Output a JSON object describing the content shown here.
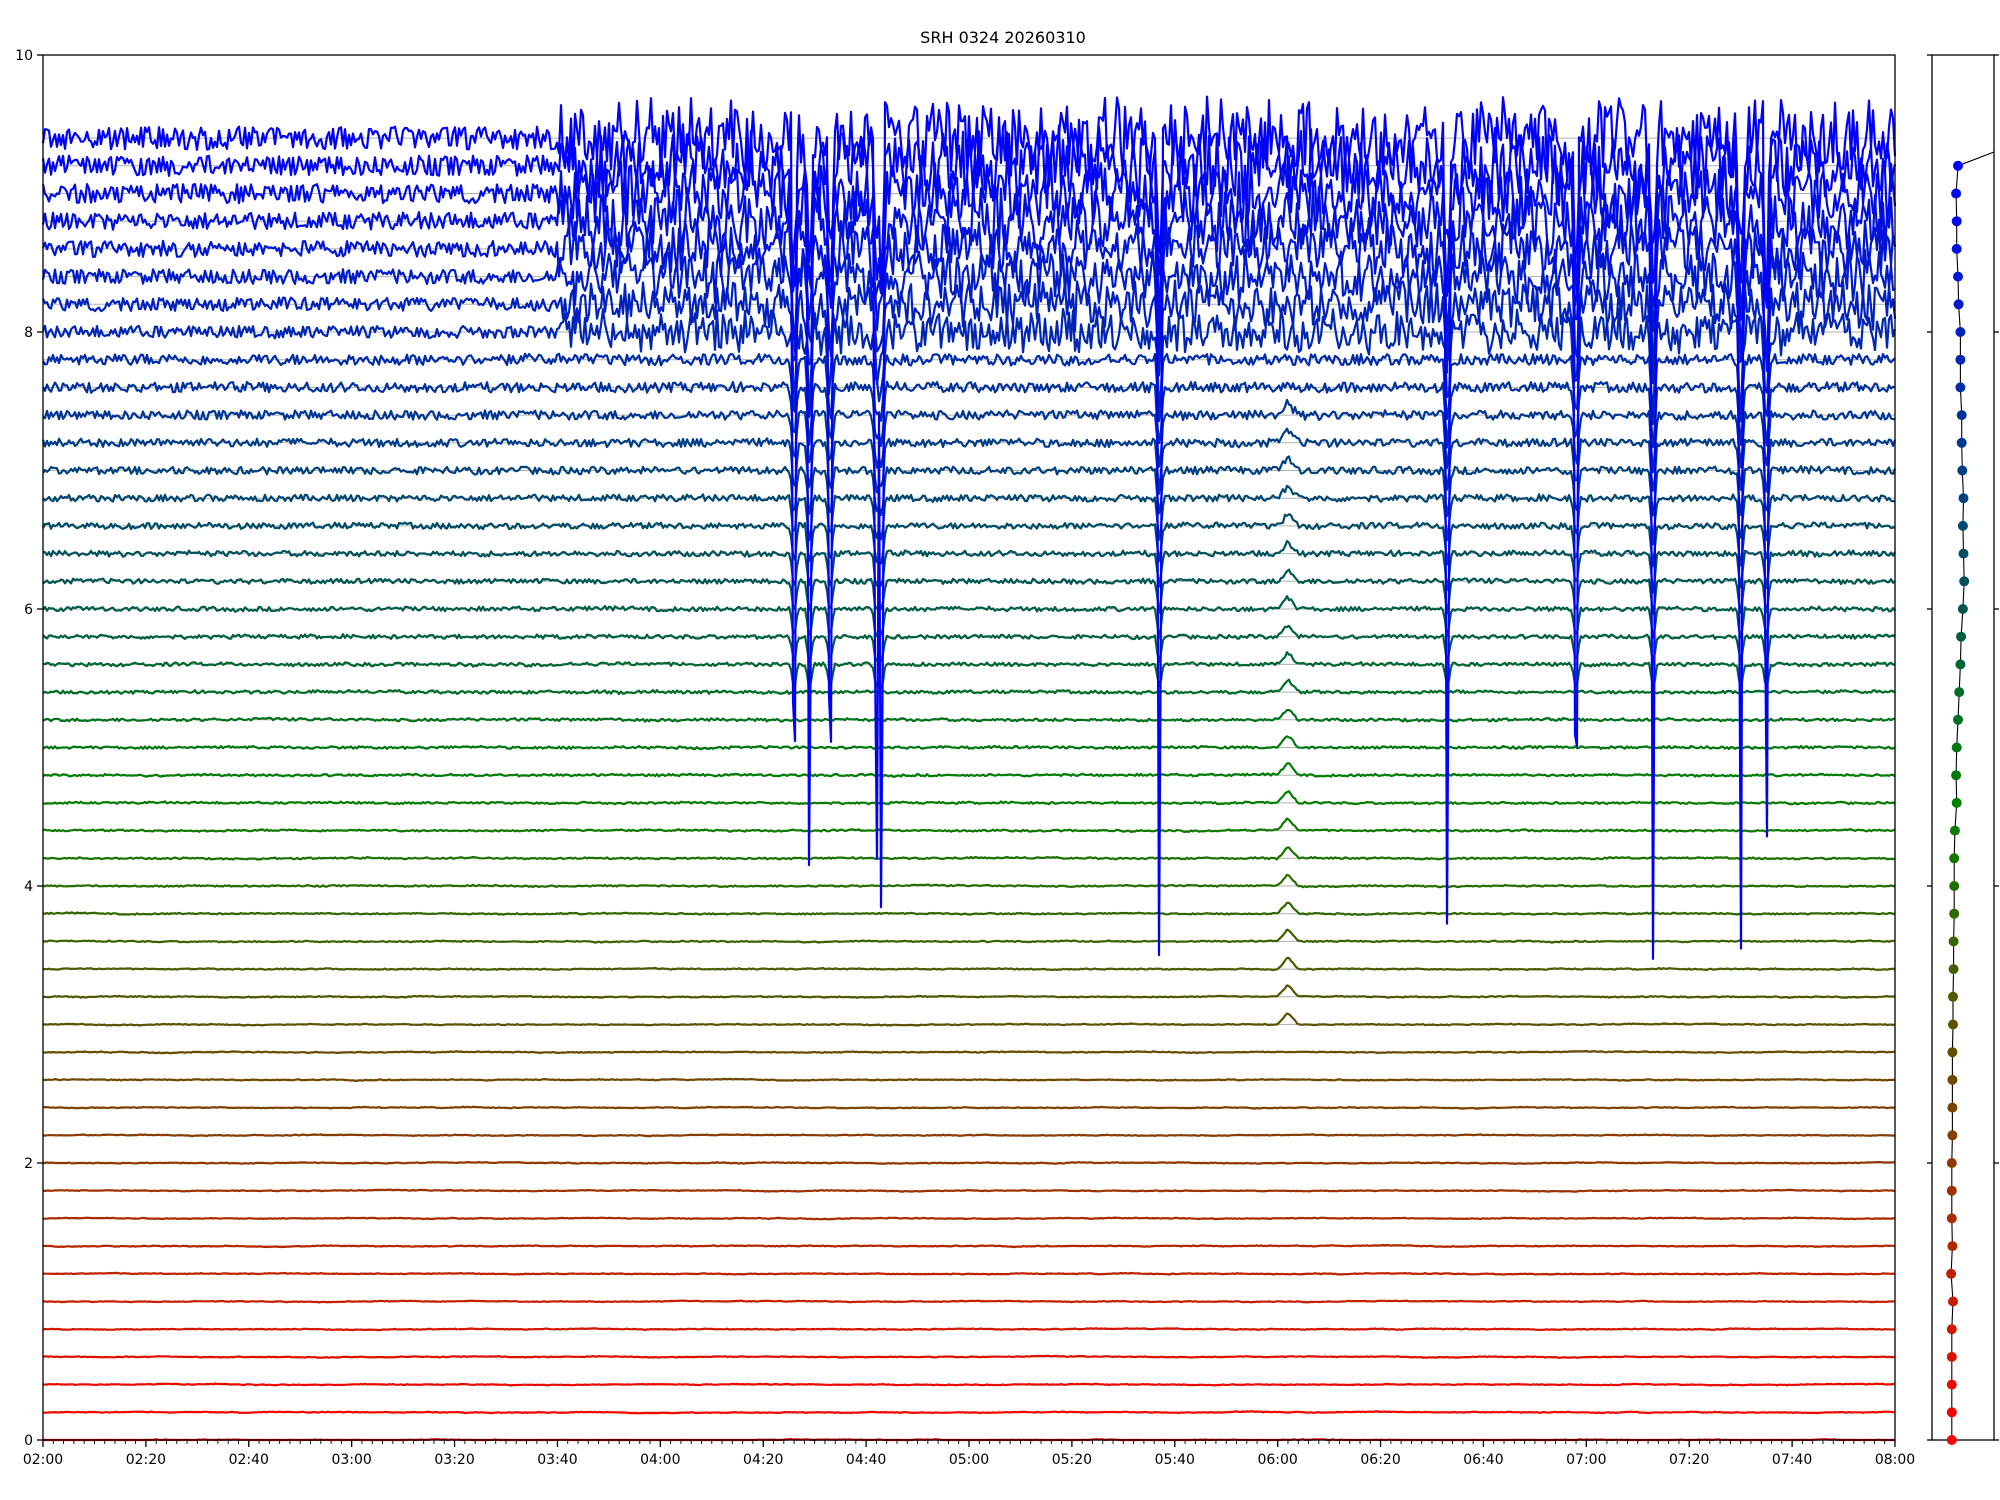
{
  "chart_data": {
    "type": "line",
    "title": "SRH 0324 20260310",
    "xlabel": "",
    "ylabel": "",
    "x_range": [
      "02:00",
      "08:00"
    ],
    "x_ticks": [
      "02:00",
      "02:20",
      "02:40",
      "03:00",
      "03:20",
      "03:40",
      "04:00",
      "04:20",
      "04:40",
      "05:00",
      "05:20",
      "05:40",
      "06:00",
      "06:20",
      "06:40",
      "07:00",
      "07:20",
      "07:40",
      "08:00"
    ],
    "ylim": [
      0,
      10
    ],
    "y_ticks": [
      "0",
      "2",
      "4",
      "6",
      "8",
      "10"
    ],
    "grid": "horizontal reference line per channel",
    "channel_count": 48,
    "channel_baselines": [
      0.0,
      0.2,
      0.4,
      0.6,
      0.8,
      1.0,
      1.2,
      1.4,
      1.6,
      1.8,
      2.0,
      2.2,
      2.4,
      2.6,
      2.8,
      3.0,
      3.2,
      3.4,
      3.6,
      3.8,
      4.0,
      4.2,
      4.4,
      4.6,
      4.8,
      5.0,
      5.2,
      5.4,
      5.6,
      5.8,
      6.0,
      6.2,
      6.4,
      6.6,
      6.8,
      7.0,
      7.2,
      7.4,
      7.6,
      7.8,
      8.0,
      8.2,
      8.4,
      8.6,
      8.8,
      9.0,
      9.2,
      9.4
    ],
    "color_scale": {
      "bottom": "#ff0000",
      "middle": "#008000",
      "top": "#0000ff"
    },
    "transient_events_time": [
      "04:26",
      "04:29",
      "04:33",
      "04:42",
      "04:43",
      "05:37",
      "06:33",
      "06:58",
      "07:13",
      "07:30",
      "07:35"
    ],
    "side_panel": {
      "type": "scatter",
      "description_y_range": [
        0,
        10
      ],
      "points_y": [
        0.0,
        0.2,
        0.4,
        0.6,
        0.8,
        1.0,
        1.2,
        1.4,
        1.6,
        1.8,
        2.0,
        2.2,
        2.4,
        2.6,
        2.8,
        3.0,
        3.2,
        3.4,
        3.6,
        3.8,
        4.0,
        4.2,
        4.4,
        4.6,
        4.8,
        5.0,
        5.2,
        5.4,
        5.6,
        5.8,
        6.0,
        6.2,
        6.4,
        6.6,
        6.8,
        7.0,
        7.2,
        7.4,
        7.6,
        7.8,
        8.0,
        8.2,
        8.4,
        8.6,
        8.8,
        9.0,
        9.2
      ],
      "points_x": [
        0.48,
        0.48,
        0.48,
        0.48,
        0.48,
        0.5,
        0.47,
        0.49,
        0.48,
        0.48,
        0.48,
        0.49,
        0.49,
        0.49,
        0.49,
        0.5,
        0.5,
        0.51,
        0.51,
        0.52,
        0.52,
        0.52,
        0.53,
        0.56,
        0.55,
        0.56,
        0.58,
        0.6,
        0.62,
        0.63,
        0.66,
        0.68,
        0.67,
        0.66,
        0.67,
        0.65,
        0.64,
        0.64,
        0.62,
        0.62,
        0.62,
        0.59,
        0.58,
        0.56,
        0.56,
        0.55,
        0.58
      ]
    }
  }
}
